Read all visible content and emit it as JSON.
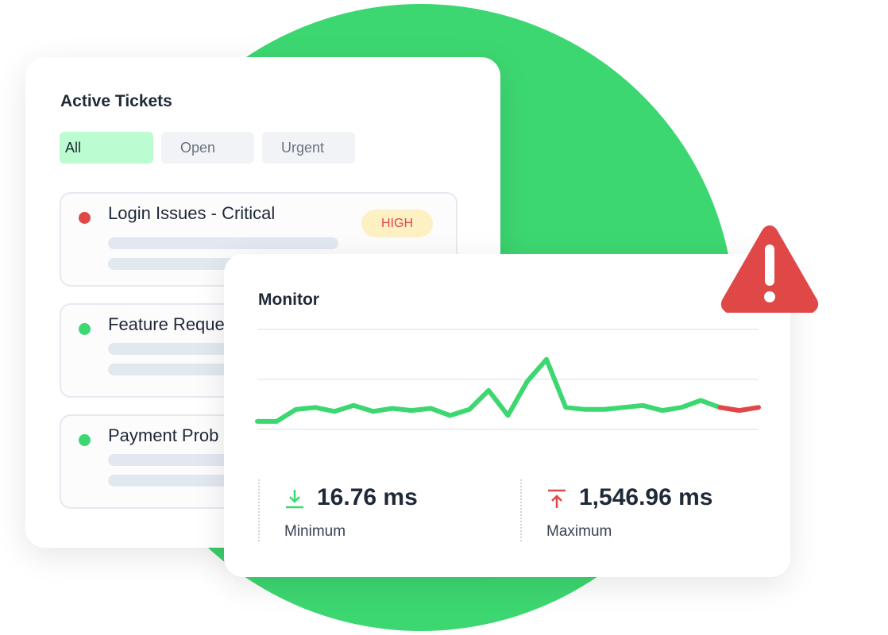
{
  "tickets": {
    "title": "Active Tickets",
    "filters": [
      {
        "label": "All",
        "active": true
      },
      {
        "label": "Open",
        "active": false
      },
      {
        "label": "Urgent",
        "active": false
      }
    ],
    "items": [
      {
        "name": "Login Issues - Critical",
        "status_color": "#e04848",
        "badge": "HIGH"
      },
      {
        "name": "Feature Reque",
        "status_color": "#3dd771"
      },
      {
        "name": "Payment Prob",
        "status_color": "#3dd771"
      }
    ]
  },
  "monitor": {
    "title": "Monitor",
    "minimum": {
      "value": "16.76 ms",
      "label": "Minimum",
      "icon": "arrow-down-to-line-icon",
      "color": "#3dd771"
    },
    "maximum": {
      "value": "1,546.96 ms",
      "label": "Maximum",
      "icon": "arrow-up-from-line-icon",
      "color": "#e04848"
    }
  },
  "colors": {
    "accent": "#3dd771",
    "alert": "#e04848"
  },
  "alert_icon": "warning-triangle-icon",
  "chart_data": {
    "type": "line",
    "ylim": [
      0,
      100
    ],
    "grid": true,
    "series": [
      {
        "color": "#3dd771",
        "values": [
          8,
          8,
          20,
          22,
          18,
          24,
          18,
          21,
          19,
          21,
          14,
          20,
          39,
          14,
          48,
          70,
          22,
          20,
          20,
          22,
          24,
          19,
          22,
          29,
          22
        ]
      },
      {
        "color": "#e04848",
        "values": [
          22,
          19,
          22
        ]
      }
    ]
  }
}
